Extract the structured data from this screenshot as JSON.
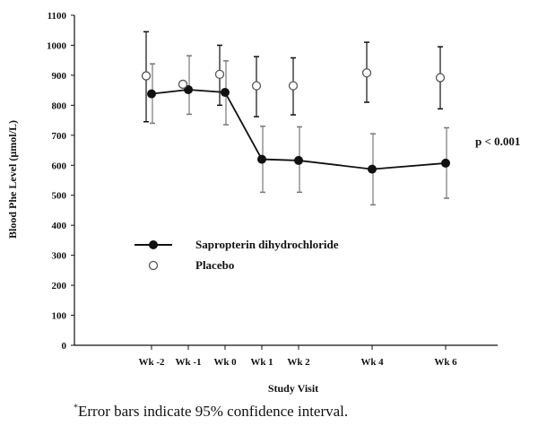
{
  "chart_data": {
    "type": "line",
    "xlabel": "Study Visit",
    "ylabel": "Blood Phe Level (µmol/L)",
    "ylim": [
      0,
      1100
    ],
    "yticks": [
      0,
      100,
      200,
      300,
      400,
      500,
      600,
      700,
      800,
      900,
      1000,
      1100
    ],
    "x_positions_weeks": [
      -2,
      -1,
      0,
      1,
      2,
      4,
      6
    ],
    "categories": [
      "Wk -2",
      "Wk -1",
      "Wk 0",
      "Wk 1",
      "Wk 2",
      "Wk 4",
      "Wk 6"
    ],
    "series": [
      {
        "name": "Sapropterin dihydrochloride",
        "marker": "filled-circle",
        "connected": true,
        "values": [
          838,
          852,
          843,
          620,
          616,
          587,
          607
        ],
        "ci_low": [
          740,
          770,
          735,
          510,
          510,
          468,
          490
        ],
        "ci_high": [
          938,
          965,
          948,
          730,
          728,
          705,
          725
        ]
      },
      {
        "name": "Placebo",
        "marker": "open-circle",
        "connected": false,
        "values": [
          898,
          870,
          903,
          865,
          865,
          908,
          892
        ],
        "ci_low": [
          745,
          null,
          800,
          762,
          768,
          810,
          788
        ],
        "ci_high": [
          1045,
          null,
          1000,
          962,
          958,
          1010,
          995
        ]
      }
    ],
    "annotation": "p < 0.001",
    "legend_position": "center-left"
  },
  "footnote": {
    "marker": "*",
    "text": "Error bars indicate 95% confidence interval."
  }
}
